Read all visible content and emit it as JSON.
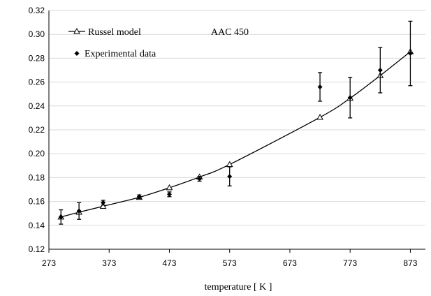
{
  "chart_data": {
    "type": "line",
    "title": "",
    "annotation": "AAC 450",
    "xlabel": "temperature  [ K ]",
    "ylabel": "",
    "xlim": [
      273,
      898
    ],
    "ylim": [
      0.12,
      0.32
    ],
    "xticks": [
      273,
      373,
      473,
      573,
      673,
      773,
      873
    ],
    "yticks": [
      0.12,
      0.14,
      0.16,
      0.18,
      0.2,
      0.22,
      0.24,
      0.26,
      0.28,
      0.3,
      0.32
    ],
    "xtick_labels": [
      "273",
      "373",
      "473",
      "573",
      "673",
      "773",
      "873"
    ],
    "ytick_labels": [
      "0.12",
      "0.14",
      "0.16",
      "0.18",
      "0.20",
      "0.22",
      "0.24",
      "0.26",
      "0.28",
      "0.30",
      "0.32"
    ],
    "grid": true,
    "legend_position": "top-left",
    "series": [
      {
        "name": "Russel model",
        "marker": "open-triangle",
        "line": true,
        "color": "#000000",
        "x": [
          293,
          323,
          363,
          423,
          473,
          523,
          573,
          723,
          773,
          823,
          873
        ],
        "y": [
          0.147,
          0.151,
          0.156,
          0.1635,
          0.1715,
          0.1805,
          0.191,
          0.2305,
          0.2465,
          0.2655,
          0.2855
        ]
      },
      {
        "name": "Experimental data",
        "marker": "filled-diamond",
        "line": false,
        "color": "#000000",
        "x": [
          293,
          323,
          363,
          423,
          473,
          523,
          573,
          723,
          773,
          823,
          873
        ],
        "y": [
          0.147,
          0.152,
          0.159,
          0.164,
          0.166,
          0.179,
          0.181,
          0.256,
          0.247,
          0.27,
          0.284
        ],
        "error": [
          0.006,
          0.007,
          0.002,
          0.0015,
          0.002,
          0.002,
          0.008,
          0.012,
          0.017,
          0.019,
          0.027
        ]
      }
    ]
  }
}
